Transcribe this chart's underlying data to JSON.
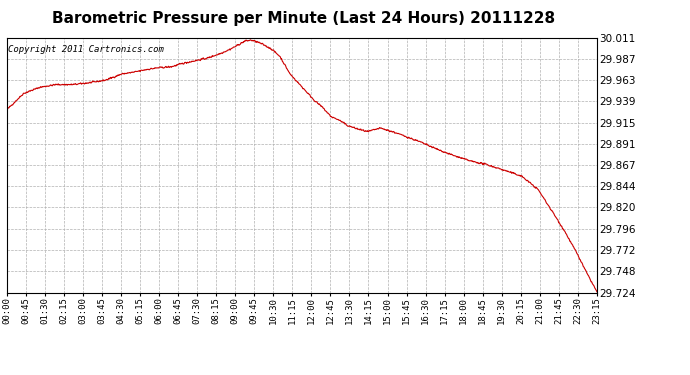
{
  "title": "Barometric Pressure per Minute (Last 24 Hours) 20111228",
  "copyright": "Copyright 2011 Cartronics.com",
  "y_ticks": [
    29.724,
    29.748,
    29.772,
    29.796,
    29.82,
    29.844,
    29.867,
    29.891,
    29.915,
    29.939,
    29.963,
    29.987,
    30.011
  ],
  "y_min": 29.724,
  "y_max": 30.011,
  "x_labels": [
    "00:00",
    "00:45",
    "01:30",
    "02:15",
    "03:00",
    "03:45",
    "04:30",
    "05:15",
    "06:00",
    "06:45",
    "07:30",
    "08:15",
    "09:00",
    "09:45",
    "10:30",
    "11:15",
    "12:00",
    "12:45",
    "13:30",
    "14:15",
    "15:00",
    "15:45",
    "16:30",
    "17:15",
    "18:00",
    "18:45",
    "19:30",
    "20:15",
    "21:00",
    "21:45",
    "22:30",
    "23:15"
  ],
  "line_color": "#cc0000",
  "bg_color": "#ffffff",
  "grid_color": "#b0b0b0",
  "title_fontsize": 11,
  "copyright_fontsize": 6.5,
  "ytick_fontsize": 7.5,
  "xtick_fontsize": 6.5,
  "keypoints_x": [
    0,
    40,
    80,
    120,
    160,
    200,
    240,
    280,
    310,
    340,
    370,
    400,
    430,
    460,
    490,
    520,
    545,
    565,
    580,
    595,
    610,
    625,
    645,
    665,
    690,
    710,
    730,
    750,
    770,
    790,
    810,
    830,
    855,
    880,
    910,
    940,
    970,
    1010,
    1050,
    1090,
    1130,
    1170,
    1210,
    1255,
    1295,
    1330,
    1360,
    1390,
    1415,
    1435,
    1439
  ],
  "keypoints_y": [
    29.93,
    29.948,
    29.955,
    29.958,
    29.958,
    29.96,
    29.963,
    29.97,
    29.972,
    29.975,
    29.977,
    29.978,
    29.982,
    29.985,
    29.988,
    29.993,
    29.998,
    30.003,
    30.007,
    30.008,
    30.006,
    30.003,
    29.998,
    29.99,
    29.97,
    29.96,
    29.95,
    29.94,
    29.932,
    29.922,
    29.918,
    29.912,
    29.908,
    29.905,
    29.909,
    29.905,
    29.9,
    29.893,
    29.885,
    29.878,
    29.872,
    29.868,
    29.862,
    29.855,
    29.84,
    29.815,
    29.793,
    29.768,
    29.745,
    29.728,
    29.724
  ]
}
